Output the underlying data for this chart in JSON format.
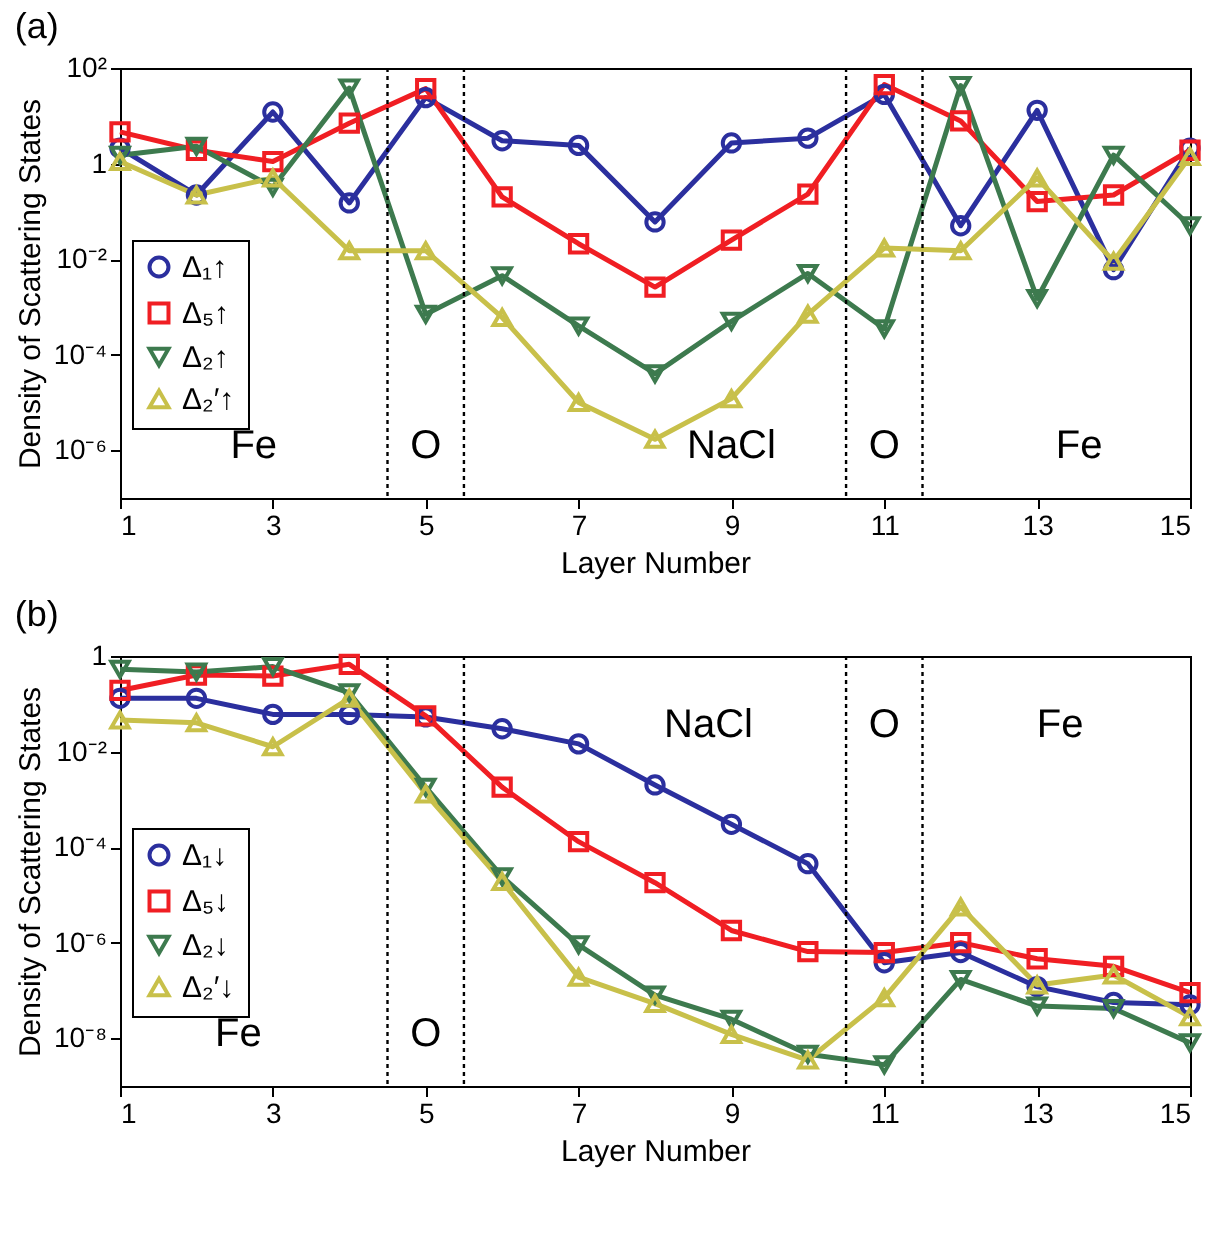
{
  "chart_data": [
    {
      "type": "line",
      "title": "(a)",
      "xlabel": "Layer Number",
      "ylabel": "Density of Scattering States",
      "log": "y",
      "grid": false,
      "legend": "left",
      "x": [
        1,
        2,
        3,
        4,
        5,
        6,
        7,
        8,
        9,
        10,
        11,
        12,
        13,
        14,
        15
      ],
      "xlim": [
        1,
        15
      ],
      "xticks": [
        1,
        3,
        5,
        7,
        9,
        11,
        13,
        15
      ],
      "ylim": [
        1e-07,
        100
      ],
      "yticks": [
        {
          "value": 1e-06,
          "label": "10⁻⁶"
        },
        {
          "value": 0.0001,
          "label": "10⁻⁴"
        },
        {
          "value": 0.01,
          "label": "10⁻²"
        },
        1,
        {
          "value": 100,
          "label": "10²"
        }
      ],
      "series": [
        {
          "name": "Δ₁↑",
          "color": "#2b2f9e",
          "marker": "circle",
          "values": [
            2.1,
            0.22,
            12,
            0.15,
            24,
            3,
            2.4,
            0.06,
            2.7,
            3.4,
            28,
            0.05,
            13,
            0.006,
            2.1
          ]
        },
        {
          "name": "Δ₅↑",
          "color": "#f01e23",
          "marker": "square",
          "values": [
            4.6,
            1.9,
            1.1,
            7,
            37,
            0.2,
            0.021,
            0.0026,
            0.025,
            0.23,
            45,
            7.8,
            0.16,
            0.22,
            1.9
          ]
        },
        {
          "name": "Δ₂↑",
          "color": "#3d7a4e",
          "marker": "triangle-down",
          "values": [
            1.5,
            2.3,
            0.32,
            38,
            0.0007,
            0.0045,
            0.0004,
            4e-05,
            0.0005,
            0.005,
            0.00035,
            43,
            0.0015,
            1.5,
            0.05
          ]
        },
        {
          "name": "Δ₂′↑",
          "color": "#c8c04a",
          "marker": "triangle",
          "values": [
            1.1,
            0.22,
            0.5,
            0.015,
            0.015,
            0.0006,
            1e-05,
            1.7e-06,
            1.2e-05,
            0.0007,
            0.017,
            0.015,
            0.5,
            0.009,
            1.4
          ]
        }
      ],
      "ref_lines": [
        {
          "axis": "x",
          "value": 4.5,
          "line_style": "dotted",
          "color": "#000000"
        },
        {
          "axis": "x",
          "value": 5.5,
          "line_style": "dotted",
          "color": "#000000"
        },
        {
          "axis": "x",
          "value": 10.5,
          "line_style": "dotted",
          "color": "#000000"
        },
        {
          "axis": "x",
          "value": 11.5,
          "line_style": "dotted",
          "color": "#000000"
        }
      ],
      "annotations": [
        "Fe",
        "O",
        "NaCl",
        "O",
        "Fe"
      ]
    },
    {
      "type": "line",
      "title": "(b)",
      "xlabel": "Layer Number",
      "ylabel": "Density of Scattering States",
      "log": "y",
      "grid": false,
      "legend": "left",
      "x": [
        1,
        2,
        3,
        4,
        5,
        6,
        7,
        8,
        9,
        10,
        11,
        12,
        13,
        14,
        15
      ],
      "xlim": [
        1,
        15
      ],
      "xticks": [
        1,
        3,
        5,
        7,
        9,
        11,
        13,
        15
      ],
      "ylim": [
        1e-09,
        1
      ],
      "yticks": [
        {
          "value": 1e-08,
          "label": "10⁻⁸"
        },
        {
          "value": 1e-06,
          "label": "10⁻⁶"
        },
        {
          "value": 0.0001,
          "label": "10⁻⁴"
        },
        {
          "value": 0.01,
          "label": "10⁻²"
        },
        1
      ],
      "series": [
        {
          "name": "Δ₁↓",
          "color": "#2b2f9e",
          "marker": "circle",
          "values": [
            0.13,
            0.13,
            0.06,
            0.06,
            0.053,
            0.03,
            0.0145,
            0.002,
            0.0003,
            4.5e-05,
            3.8e-07,
            6.2e-07,
            1.2e-07,
            5.6e-08,
            5e-08
          ]
        },
        {
          "name": "Δ₅↓",
          "color": "#f01e23",
          "marker": "square",
          "values": [
            0.19,
            0.4,
            0.38,
            0.67,
            0.056,
            0.0018,
            0.00013,
            1.8e-05,
            1.8e-06,
            6.5e-07,
            6.2e-07,
            1e-06,
            4.6e-07,
            3.2e-07,
            9e-08
          ]
        },
        {
          "name": "Δ₂↓",
          "color": "#3d7a4e",
          "marker": "triangle-down",
          "values": [
            0.53,
            0.46,
            0.6,
            0.17,
            0.0018,
            2.4e-05,
            9e-07,
            8e-08,
            2.5e-08,
            4.6e-09,
            2.8e-09,
            1.7e-07,
            4.7e-08,
            4.2e-08,
            8e-09
          ]
        },
        {
          "name": "Δ₂′↓",
          "color": "#c8c04a",
          "marker": "triangle",
          "values": [
            0.046,
            0.04,
            0.0126,
            0.13,
            0.0013,
            1.9e-05,
            1.9e-07,
            5.3e-08,
            1.2e-08,
            3.5e-09,
            7e-08,
            5.6e-06,
            1.3e-07,
            2.1e-07,
            2.8e-08
          ]
        }
      ],
      "ref_lines": [
        {
          "axis": "x",
          "value": 4.5,
          "line_style": "dotted",
          "color": "#000000"
        },
        {
          "axis": "x",
          "value": 5.5,
          "line_style": "dotted",
          "color": "#000000"
        },
        {
          "axis": "x",
          "value": 10.5,
          "line_style": "dotted",
          "color": "#000000"
        },
        {
          "axis": "x",
          "value": 11.5,
          "line_style": "dotted",
          "color": "#000000"
        }
      ],
      "annotations": [
        "Fe",
        "O",
        "NaCl",
        "O",
        "Fe"
      ]
    }
  ]
}
